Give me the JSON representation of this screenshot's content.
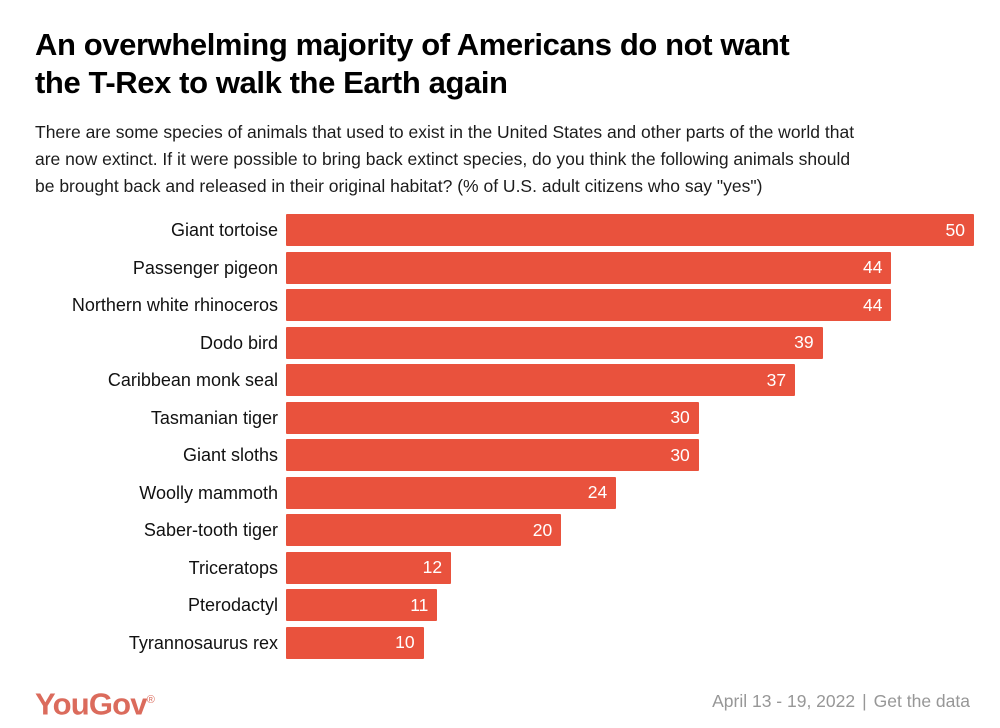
{
  "page": {
    "background_color": "#ffffff"
  },
  "header": {
    "title_lines": [
      "An overwhelming majority of Americans do not want",
      "the T-Rex to walk the Earth again"
    ],
    "subtitle_lines": [
      "There are some species of animals that used to exist in the United States and other parts of the world that",
      "are now extinct. If it were possible to bring back extinct species, do you think the following animals should",
      "be brought back and released in their original habitat? (% of U.S. adult citizens who say \"yes\")"
    ]
  },
  "chart_data": {
    "type": "bar",
    "orientation": "horizontal",
    "categories": [
      "Giant tortoise",
      "Passenger pigeon",
      "Northern white rhinoceros",
      "Dodo bird",
      "Caribbean monk seal",
      "Tasmanian tiger",
      "Giant sloths",
      "Woolly mammoth",
      "Saber-tooth tiger",
      "Triceratops",
      "Pterodactyl",
      "Tyrannosaurus rex"
    ],
    "values": [
      50,
      44,
      44,
      39,
      37,
      30,
      30,
      24,
      20,
      12,
      11,
      10
    ],
    "value_unit": "%",
    "xlim": [
      0,
      50
    ],
    "grid": false,
    "value_labels_position": "inside-end",
    "bar_color": "#E9523D",
    "value_label_color": "#FFFFFF",
    "title": "An overwhelming majority of Americans do not want the T-Rex to walk the Earth again",
    "xlabel": "",
    "ylabel": ""
  },
  "footer": {
    "logo_text": "YouGov",
    "logo_registered_mark": "®",
    "logo_color": "#DB6B5C",
    "date_range": "April 13 - 19, 2022",
    "separator": "|",
    "link_label": "Get the data",
    "text_color": "#979797"
  }
}
